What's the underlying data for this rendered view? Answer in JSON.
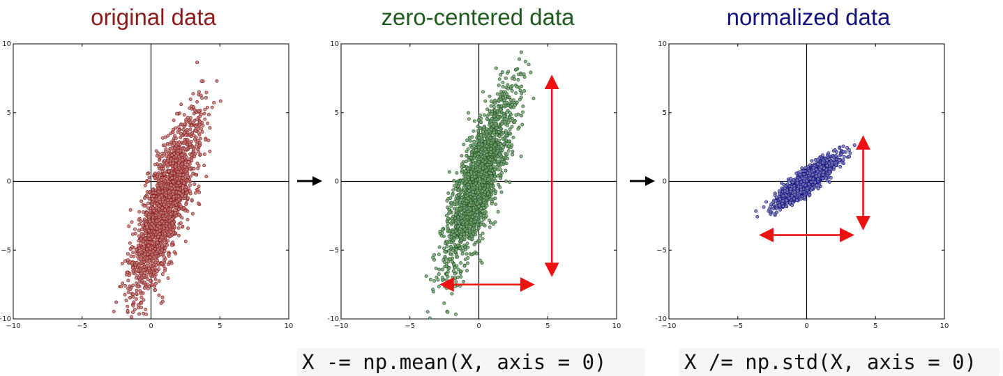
{
  "titles": {
    "original": "original data",
    "zero_centered": "zero-centered data",
    "normalized": "normalized data"
  },
  "colors": {
    "original": "#8b1a1a",
    "zero_centered": "#1e5a1e",
    "normalized": "#12127e",
    "range_arrow": "#ee1111",
    "flow_arrow": "#000000"
  },
  "code": {
    "mean_line": "X -= np.mean(X, axis = 0)",
    "std_line": "X /= np.std(X, axis = 0)"
  },
  "chart_data": [
    {
      "type": "scatter",
      "title": "original data",
      "xlim": [
        -10,
        10
      ],
      "ylim": [
        -10,
        10
      ],
      "xticks": [
        "−10",
        "−5",
        "0",
        "5",
        "10"
      ],
      "yticks": [
        "10",
        "5",
        "0",
        "−5",
        "−10"
      ],
      "grid": false,
      "color": "#8b1a1a",
      "cloud": {
        "center": [
          1,
          -1.8
        ],
        "principal_axis_deg": 72,
        "spread_major": 3.4,
        "spread_minor": 0.7,
        "approx_points": 2000
      },
      "range_arrows": []
    },
    {
      "type": "scatter",
      "title": "zero-centered data",
      "xlim": [
        -10,
        10
      ],
      "ylim": [
        -10,
        10
      ],
      "xticks": [
        "−10",
        "−5",
        "0",
        "5",
        "10"
      ],
      "yticks": [
        "10",
        "5",
        "0",
        "−5",
        "−10"
      ],
      "grid": false,
      "color": "#1e5a1e",
      "cloud": {
        "center": [
          0,
          0
        ],
        "principal_axis_deg": 72,
        "spread_major": 3.4,
        "spread_minor": 0.7,
        "approx_points": 2000
      },
      "range_arrows": [
        {
          "orientation": "vertical",
          "at": 5.3,
          "from": -6.7,
          "to": 7.5
        },
        {
          "orientation": "horizontal",
          "at": -7.5,
          "from": -2.6,
          "to": 3.8
        }
      ]
    },
    {
      "type": "scatter",
      "title": "normalized data",
      "xlim": [
        -10,
        10
      ],
      "ylim": [
        -10,
        10
      ],
      "xticks": [
        "−10",
        "−5",
        "0",
        "5",
        "10"
      ],
      "yticks": [
        "10",
        "5",
        "0",
        "−5",
        "−10"
      ],
      "grid": false,
      "color": "#12127e",
      "cloud": {
        "center": [
          0,
          0
        ],
        "principal_axis_deg": 38,
        "spread_major": 1.3,
        "spread_minor": 0.32,
        "approx_points": 2000
      },
      "range_arrows": [
        {
          "orientation": "vertical",
          "at": 4.1,
          "from": -3.3,
          "to": 3.1
        },
        {
          "orientation": "horizontal",
          "at": -3.9,
          "from": -3.2,
          "to": 3.2
        }
      ]
    }
  ]
}
